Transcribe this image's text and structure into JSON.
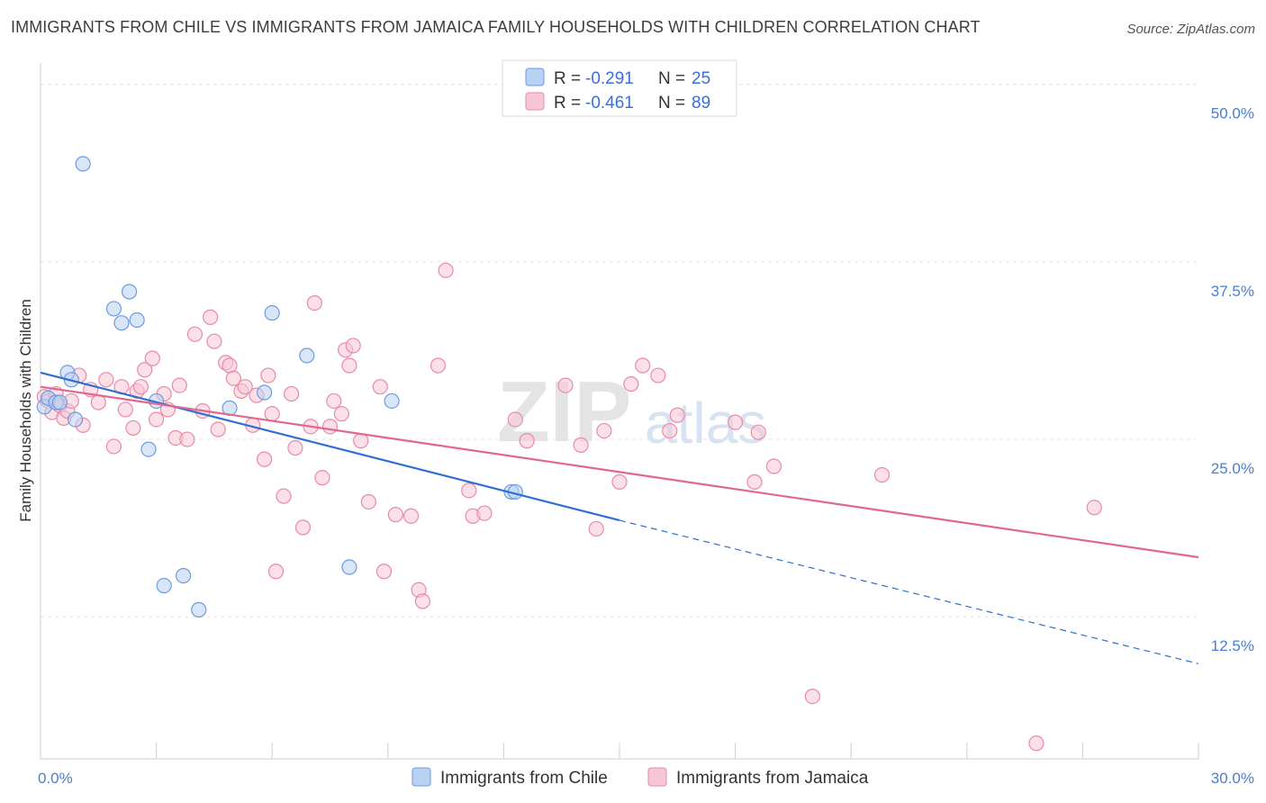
{
  "title": "IMMIGRANTS FROM CHILE VS IMMIGRANTS FROM JAMAICA FAMILY HOUSEHOLDS WITH CHILDREN CORRELATION CHART",
  "source": "Source: ZipAtlas.com",
  "watermark": {
    "zip": "ZIP",
    "atlas": "atlas"
  },
  "colors": {
    "chile_fill": "#b9d2f2",
    "chile_stroke": "#6c9be0",
    "chile_line": "#2f6fd0",
    "jamaica_fill": "#f7c6d5",
    "jamaica_stroke": "#e98aa7",
    "jamaica_line": "#e0678f",
    "grid": "#e3e3e3",
    "tick_label": "#4a7fd0"
  },
  "legend": {
    "chile": {
      "r_label": "R = ",
      "r_value": "-0.291",
      "n_label": "N = ",
      "n_value": "25"
    },
    "jamaica": {
      "r_label": "R = ",
      "r_value": "-0.461",
      "n_label": "N = ",
      "n_value": "89"
    }
  },
  "chart_data": {
    "type": "scatter",
    "title": "IMMIGRANTS FROM CHILE VS IMMIGRANTS FROM JAMAICA FAMILY HOUSEHOLDS WITH CHILDREN CORRELATION CHART",
    "xlabel": "",
    "ylabel": "Family Households with Children",
    "xlim": [
      0,
      30
    ],
    "ylim": [
      2.5,
      51.5
    ],
    "x_tick_labels": [
      "0.0%",
      "30.0%"
    ],
    "y_ticks": [
      12.5,
      25.0,
      37.5,
      50.0
    ],
    "y_tick_labels": [
      "12.5%",
      "25.0%",
      "37.5%",
      "50.0%"
    ],
    "grid": true,
    "legend_position": "top-center",
    "series": [
      {
        "name": "Immigrants from Chile",
        "points": [
          [
            0.1,
            27.3
          ],
          [
            0.2,
            27.9
          ],
          [
            0.4,
            27.6
          ],
          [
            0.5,
            27.6
          ],
          [
            0.7,
            29.7
          ],
          [
            0.8,
            29.2
          ],
          [
            0.9,
            26.4
          ],
          [
            1.1,
            44.4
          ],
          [
            1.9,
            34.2
          ],
          [
            2.1,
            33.2
          ],
          [
            2.3,
            35.4
          ],
          [
            2.5,
            33.4
          ],
          [
            2.8,
            24.3
          ],
          [
            3.0,
            27.7
          ],
          [
            3.2,
            14.7
          ],
          [
            3.7,
            15.4
          ],
          [
            4.1,
            13.0
          ],
          [
            4.9,
            27.2
          ],
          [
            5.8,
            28.3
          ],
          [
            6.0,
            33.9
          ],
          [
            6.9,
            30.9
          ],
          [
            8.0,
            16.0
          ],
          [
            9.1,
            27.7
          ],
          [
            12.2,
            21.3
          ],
          [
            12.3,
            21.3
          ]
        ],
        "trend": {
          "x": [
            0.0,
            15.0
          ],
          "y": [
            29.7,
            19.3
          ],
          "dashed_to": [
            30.0,
            9.2
          ]
        }
      },
      {
        "name": "Immigrants from Jamaica",
        "points": [
          [
            0.1,
            28.0
          ],
          [
            0.2,
            27.7
          ],
          [
            0.3,
            26.9
          ],
          [
            0.4,
            28.2
          ],
          [
            0.5,
            27.4
          ],
          [
            0.6,
            26.5
          ],
          [
            0.7,
            27.0
          ],
          [
            0.8,
            27.7
          ],
          [
            1.0,
            29.5
          ],
          [
            1.1,
            26.0
          ],
          [
            1.3,
            28.5
          ],
          [
            1.5,
            27.6
          ],
          [
            1.7,
            29.2
          ],
          [
            1.9,
            24.5
          ],
          [
            2.1,
            28.7
          ],
          [
            2.2,
            27.1
          ],
          [
            2.4,
            25.8
          ],
          [
            2.5,
            28.4
          ],
          [
            2.6,
            28.7
          ],
          [
            2.7,
            29.9
          ],
          [
            2.9,
            30.7
          ],
          [
            3.0,
            26.4
          ],
          [
            3.2,
            28.2
          ],
          [
            3.3,
            27.1
          ],
          [
            3.5,
            25.1
          ],
          [
            3.6,
            28.8
          ],
          [
            3.8,
            25.0
          ],
          [
            4.0,
            32.4
          ],
          [
            4.2,
            27.0
          ],
          [
            4.4,
            33.6
          ],
          [
            4.5,
            31.9
          ],
          [
            4.6,
            25.7
          ],
          [
            4.8,
            30.4
          ],
          [
            4.9,
            30.2
          ],
          [
            5.0,
            29.3
          ],
          [
            5.2,
            28.4
          ],
          [
            5.3,
            28.7
          ],
          [
            5.5,
            26.0
          ],
          [
            5.6,
            28.1
          ],
          [
            5.8,
            23.6
          ],
          [
            5.9,
            29.5
          ],
          [
            6.0,
            26.8
          ],
          [
            6.1,
            15.7
          ],
          [
            6.3,
            21.0
          ],
          [
            6.5,
            28.2
          ],
          [
            6.6,
            24.4
          ],
          [
            6.8,
            18.8
          ],
          [
            7.0,
            25.9
          ],
          [
            7.1,
            34.6
          ],
          [
            7.3,
            22.3
          ],
          [
            7.5,
            25.9
          ],
          [
            7.6,
            27.7
          ],
          [
            7.8,
            26.8
          ],
          [
            7.9,
            31.3
          ],
          [
            8.0,
            30.2
          ],
          [
            8.1,
            31.6
          ],
          [
            8.3,
            24.9
          ],
          [
            8.5,
            20.6
          ],
          [
            8.8,
            28.7
          ],
          [
            8.9,
            15.7
          ],
          [
            9.2,
            19.7
          ],
          [
            9.6,
            19.6
          ],
          [
            9.8,
            14.4
          ],
          [
            9.9,
            13.6
          ],
          [
            10.3,
            30.2
          ],
          [
            10.5,
            36.9
          ],
          [
            11.1,
            21.4
          ],
          [
            11.2,
            19.6
          ],
          [
            11.5,
            19.8
          ],
          [
            12.3,
            26.4
          ],
          [
            12.6,
            24.9
          ],
          [
            13.6,
            28.8
          ],
          [
            14.0,
            24.6
          ],
          [
            14.4,
            18.7
          ],
          [
            14.6,
            25.6
          ],
          [
            15.0,
            22.0
          ],
          [
            15.3,
            28.9
          ],
          [
            15.6,
            30.2
          ],
          [
            16.0,
            29.5
          ],
          [
            16.3,
            25.6
          ],
          [
            16.5,
            26.7
          ],
          [
            18.0,
            26.2
          ],
          [
            18.5,
            22.0
          ],
          [
            18.6,
            25.5
          ],
          [
            19.0,
            23.1
          ],
          [
            20.0,
            6.9
          ],
          [
            21.8,
            22.5
          ],
          [
            25.8,
            3.6
          ],
          [
            27.3,
            20.2
          ]
        ],
        "trend": {
          "x": [
            0.0,
            30.0
          ],
          "y": [
            28.7,
            16.7
          ]
        }
      }
    ]
  }
}
